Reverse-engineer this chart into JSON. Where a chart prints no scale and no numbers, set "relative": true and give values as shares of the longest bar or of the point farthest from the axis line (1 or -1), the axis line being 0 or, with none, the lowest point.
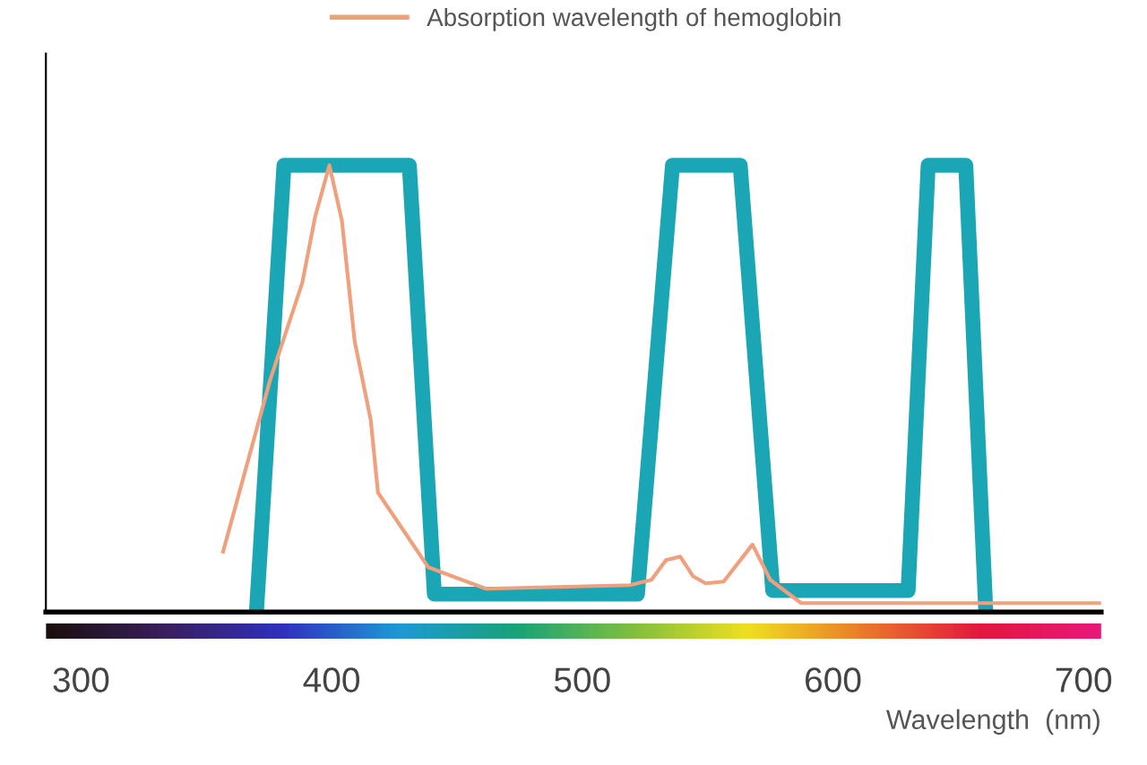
{
  "chart_data": {
    "type": "line",
    "relative": true,
    "xlabel": "Wavelength  (nm)",
    "xlim": [
      286,
      707
    ],
    "xticks": [
      300,
      400,
      500,
      600,
      700
    ],
    "grid": false,
    "legend": "top left",
    "marker": "none",
    "line_style": "solid",
    "series": [
      {
        "x": [
          370,
          381,
          431,
          441,
          522,
          536,
          563,
          576,
          630,
          638,
          653,
          661
        ],
        "values": [
          0,
          1,
          1,
          0.04,
          0.04,
          1,
          1,
          0.048,
          0.048,
          1,
          1,
          0
        ],
        "color": "#1aa6b4"
      },
      {
        "name": "Absorption wavelength of hemoglobin",
        "color": "#f0a07c",
        "x": [
          356.7,
          375.4,
          388.3,
          393.4,
          399.1,
          404.1,
          409.2,
          415.6,
          418.5,
          438.6,
          461.6,
          519,
          527.6,
          533.4,
          539.1,
          544.2,
          549.2,
          556.4,
          567.9,
          575,
          587.3,
          707
        ],
        "values": [
          0.135,
          0.518,
          0.737,
          0.884,
          1,
          0.876,
          0.606,
          0.43,
          0.267,
          0.1,
          0.052,
          0.06,
          0.072,
          0.116,
          0.124,
          0.08,
          0.064,
          0.068,
          0.151,
          0.072,
          0.02,
          0.02
        ]
      }
    ]
  }
}
